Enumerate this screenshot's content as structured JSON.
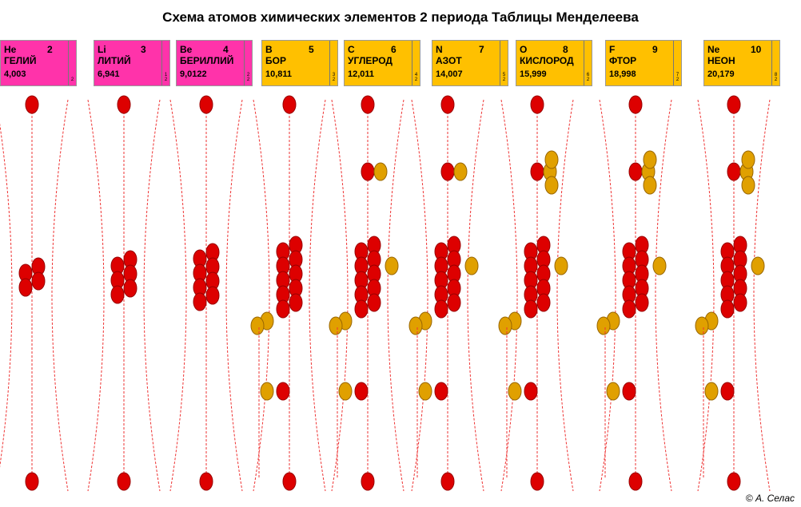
{
  "title": "Схема атомов химических элементов 2 периода Таблицы Менделеева",
  "elements": [
    {
      "symbol": "He",
      "number": "2",
      "name": "ГЕЛИЙ",
      "mass": "4,003",
      "shells": [
        "2"
      ]
    },
    {
      "symbol": "Li",
      "number": "3",
      "name": "ЛИТИЙ",
      "mass": "6,941",
      "shells": [
        "1",
        "2"
      ]
    },
    {
      "symbol": "Be",
      "number": "4",
      "name": "БЕРИЛЛИЙ",
      "mass": "9,0122",
      "shells": [
        "2",
        "2"
      ]
    },
    {
      "symbol": "B",
      "number": "5",
      "name": "БОР",
      "mass": "10,811",
      "shells": [
        "3",
        "2"
      ]
    },
    {
      "symbol": "C",
      "number": "6",
      "name": "УГЛЕРОД",
      "mass": "12,011",
      "shells": [
        "4",
        "2"
      ]
    },
    {
      "symbol": "N",
      "number": "7",
      "name": "АЗОТ",
      "mass": "14,007",
      "shells": [
        "5",
        "2"
      ]
    },
    {
      "symbol": "O",
      "number": "8",
      "name": "КИСЛОРОД",
      "mass": "15,999",
      "shells": [
        "6",
        "2"
      ]
    },
    {
      "symbol": "F",
      "number": "9",
      "name": "ФТОР",
      "mass": "18,998",
      "shells": [
        "7",
        "2"
      ]
    },
    {
      "symbol": "Ne",
      "number": "10",
      "name": "НЕОН",
      "mass": "20,179",
      "shells": [
        "8",
        "2"
      ]
    }
  ],
  "credit": "© А. Селас"
}
